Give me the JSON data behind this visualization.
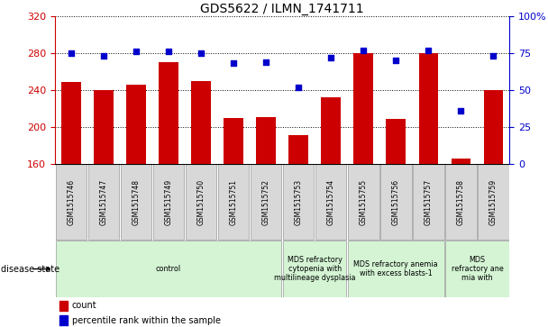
{
  "title": "GDS5622 / ILMN_1741711",
  "samples": [
    "GSM1515746",
    "GSM1515747",
    "GSM1515748",
    "GSM1515749",
    "GSM1515750",
    "GSM1515751",
    "GSM1515752",
    "GSM1515753",
    "GSM1515754",
    "GSM1515755",
    "GSM1515756",
    "GSM1515757",
    "GSM1515758",
    "GSM1515759"
  ],
  "counts": [
    249,
    240,
    246,
    270,
    250,
    209,
    210,
    191,
    232,
    280,
    208,
    280,
    165,
    240
  ],
  "percentiles": [
    75,
    73,
    76,
    76,
    75,
    68,
    69,
    52,
    72,
    77,
    70,
    77,
    36,
    73
  ],
  "ylim_left": [
    160,
    320
  ],
  "ylim_right": [
    0,
    100
  ],
  "yticks_left": [
    160,
    200,
    240,
    280,
    320
  ],
  "yticks_right": [
    0,
    25,
    50,
    75,
    100
  ],
  "ytick_labels_right": [
    "0",
    "25",
    "50",
    "75",
    "100%"
  ],
  "bar_color": "#cc0000",
  "dot_color": "#0000cc",
  "grid_color": "#000000",
  "tick_bg_color": "#d8d8d8",
  "chart_bg_color": "#ffffff",
  "disease_groups": [
    {
      "label": "control",
      "start": 0,
      "end": 6,
      "color": "#d4f4d4"
    },
    {
      "label": "MDS refractory\ncytopenia with\nmultilineage dysplasia",
      "start": 7,
      "end": 8,
      "color": "#d4f4d4"
    },
    {
      "label": "MDS refractory anemia\nwith excess blasts-1",
      "start": 9,
      "end": 11,
      "color": "#d4f4d4"
    },
    {
      "label": "MDS\nrefractory ane\nmia with",
      "start": 12,
      "end": 13,
      "color": "#d4f4d4"
    }
  ],
  "disease_state_label": "disease state",
  "legend_bar_label": "count",
  "legend_dot_label": "percentile rank within the sample"
}
